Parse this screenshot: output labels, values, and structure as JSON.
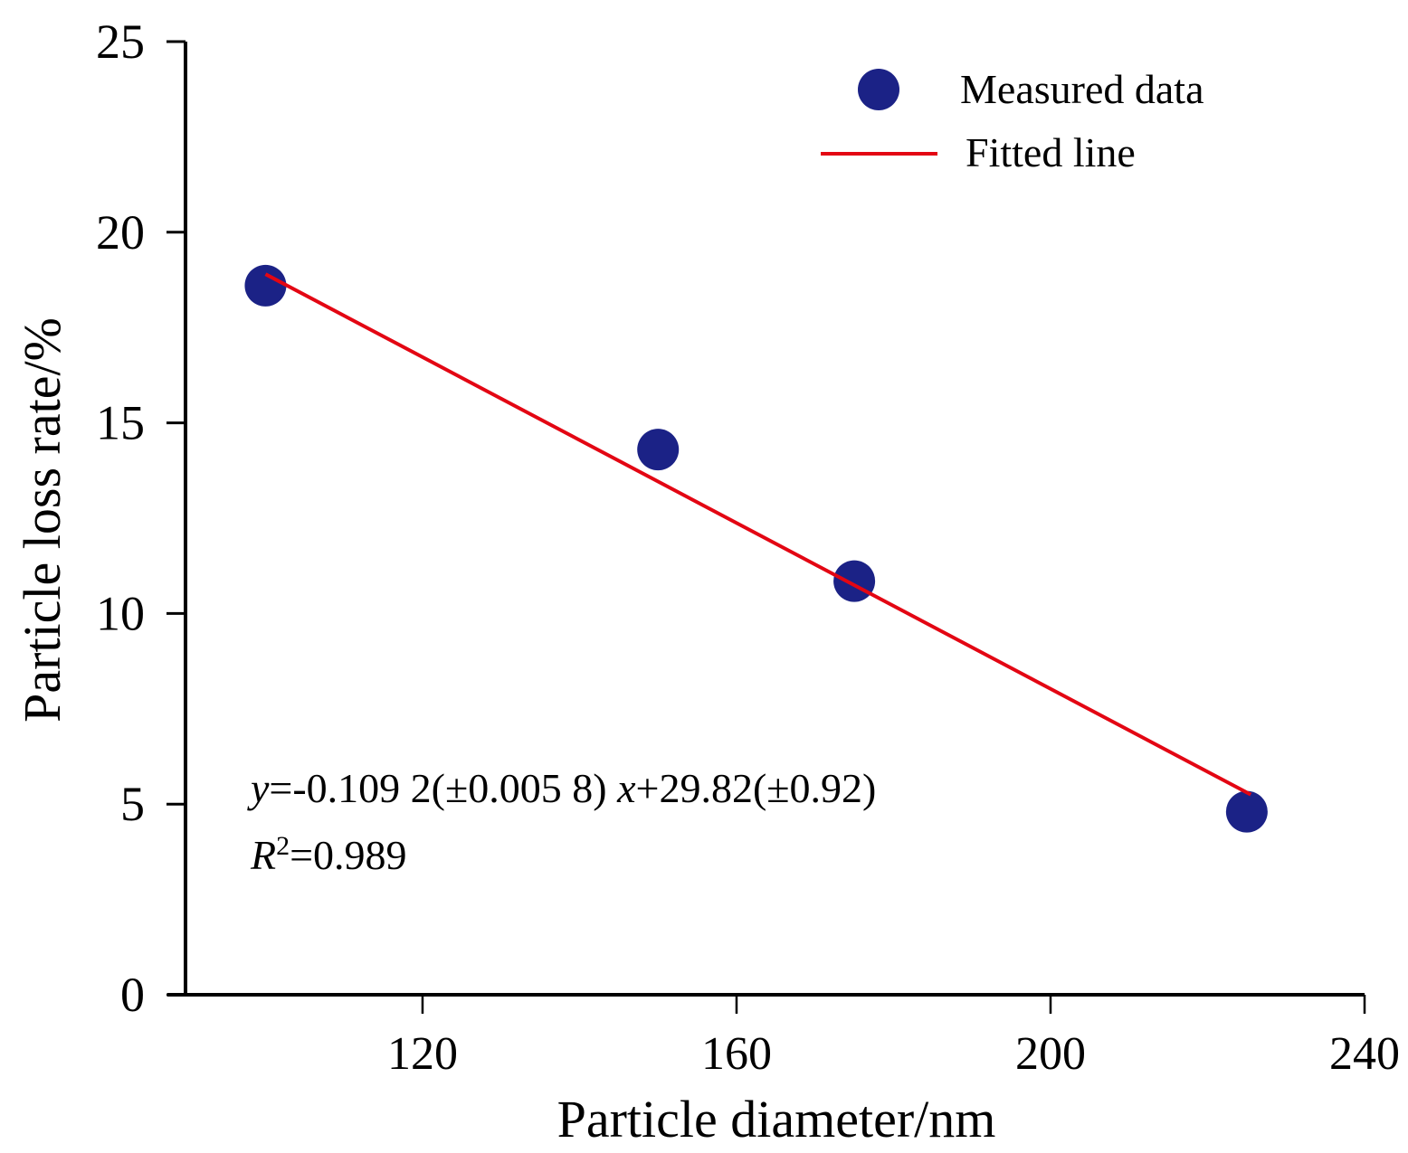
{
  "chart_data": {
    "type": "scatter",
    "title": "",
    "xlabel": "Particle diameter/nm",
    "ylabel": "Particle loss rate/%",
    "xlim": [
      87.5,
      240
    ],
    "ylim": [
      0,
      25
    ],
    "xticks": [
      120,
      160,
      200,
      240
    ],
    "yticks": [
      0,
      5,
      10,
      15,
      20,
      25
    ],
    "grid": false,
    "legend_position": "top-right",
    "series": [
      {
        "name": "Measured data",
        "kind": "scatter",
        "color": "#1b2286",
        "x": [
          100,
          150,
          175,
          225
        ],
        "y": [
          18.6,
          14.3,
          10.85,
          4.8
        ]
      },
      {
        "name": "Fitted line",
        "kind": "line",
        "color": "#e30613",
        "x": [
          100,
          225.5
        ],
        "y": [
          18.9,
          5.25
        ]
      }
    ],
    "annotations": {
      "equation": {
        "y_var": "y",
        "eq_part1": "=-0.109 2(±0.005 8) ",
        "x_var": "x",
        "eq_part2": "+29.82(±0.92)"
      },
      "r_squared": {
        "r_var": "R",
        "sup": "2",
        "value": "=0.989"
      }
    }
  }
}
